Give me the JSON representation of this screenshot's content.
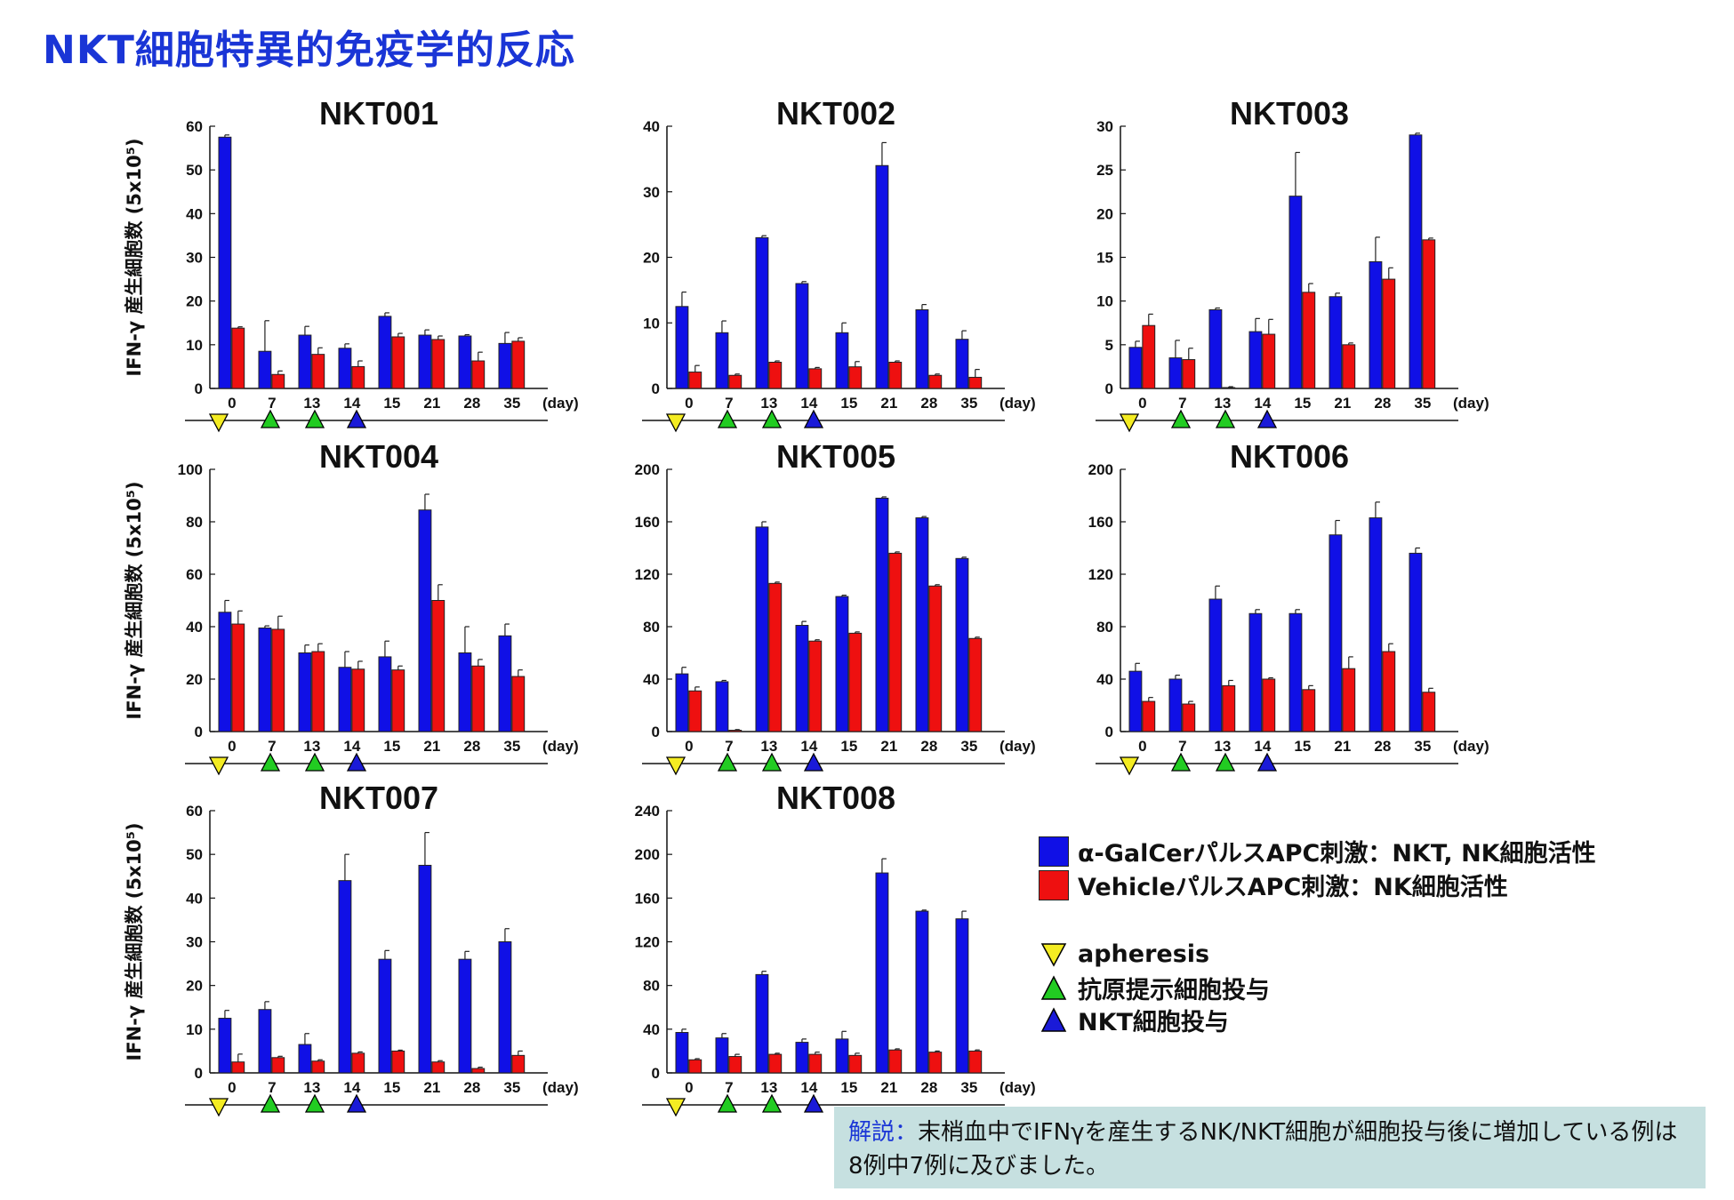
{
  "title": "NKT細胞特異的免疫学的反応",
  "ylabel": "IFN-γ 産生細胞数 (5x10⁵)",
  "colors": {
    "galcer": "#1010e6",
    "vehicle": "#ee1010",
    "apheresis": "#f4ec22",
    "apc": "#22cc22",
    "nkt": "#1a1ad8",
    "title": "#1a35d6"
  },
  "legend": {
    "galcer": "α-GalCerパルスAPC刺激：NKT, NK細胞活性",
    "vehicle": "VehicleパルスAPC刺激：NK細胞活性",
    "apheresis": "apheresis",
    "apc": "抗原提示細胞投与",
    "nkt": "NKT細胞投与"
  },
  "note": {
    "label": "解説：",
    "text": "末梢血中でIFNγを産生するNK/NKT細胞が細胞投与後に増加している例は8例中7例に及びました。"
  },
  "chart_data": [
    {
      "type": "bar",
      "title": "NKT001",
      "ylabel": "IFN-γ 産生細胞数 (5x10⁵)",
      "xunit": "(day)",
      "categories": [
        "0",
        "7",
        "13",
        "14",
        "15",
        "21",
        "28",
        "35"
      ],
      "ylim": [
        0,
        60
      ],
      "yticks": [
        0,
        10,
        20,
        30,
        40,
        50,
        60
      ],
      "series": [
        {
          "values": [
            57.5,
            8.5,
            12.2,
            9.2,
            16.5,
            12.2,
            12.0,
            10.3
          ],
          "errors": [
            0.5,
            7.0,
            2.0,
            1.0,
            0.8,
            1.2,
            0.3,
            2.5
          ]
        },
        {
          "values": [
            13.8,
            3.2,
            7.8,
            5.0,
            11.8,
            11.2,
            6.3,
            10.8
          ],
          "errors": [
            0.3,
            0.8,
            1.5,
            1.3,
            0.8,
            0.8,
            2.0,
            0.8
          ]
        }
      ],
      "events": [
        {
          "day": "0",
          "kind": "apheresis"
        },
        {
          "day": "7",
          "kind": "apc"
        },
        {
          "day": "13",
          "kind": "apc"
        },
        {
          "day": "14",
          "kind": "nkt"
        }
      ]
    },
    {
      "type": "bar",
      "title": "NKT002",
      "xunit": "(day)",
      "categories": [
        "0",
        "7",
        "13",
        "14",
        "15",
        "21",
        "28",
        "35"
      ],
      "ylim": [
        0,
        40
      ],
      "yticks": [
        0,
        10,
        20,
        30,
        40
      ],
      "series": [
        {
          "values": [
            12.5,
            8.5,
            23.0,
            16.0,
            8.5,
            34.0,
            12.0,
            7.5
          ],
          "errors": [
            2.2,
            1.8,
            0.3,
            0.3,
            1.5,
            3.5,
            0.8,
            1.3
          ]
        },
        {
          "values": [
            2.5,
            2.0,
            4.0,
            3.0,
            3.3,
            4.0,
            2.0,
            1.7
          ],
          "errors": [
            1.0,
            0.2,
            0.2,
            0.2,
            0.8,
            0.2,
            0.2,
            1.2
          ]
        }
      ],
      "events": [
        {
          "day": "0",
          "kind": "apheresis"
        },
        {
          "day": "7",
          "kind": "apc"
        },
        {
          "day": "13",
          "kind": "apc"
        },
        {
          "day": "14",
          "kind": "nkt"
        }
      ]
    },
    {
      "type": "bar",
      "title": "NKT003",
      "xunit": "(day)",
      "categories": [
        "0",
        "7",
        "13",
        "14",
        "15",
        "21",
        "28",
        "35"
      ],
      "ylim": [
        0,
        30
      ],
      "yticks": [
        0,
        5,
        10,
        15,
        20,
        25,
        30
      ],
      "series": [
        {
          "values": [
            4.7,
            3.5,
            9.0,
            6.5,
            22.0,
            10.5,
            14.5,
            29.0
          ],
          "errors": [
            0.7,
            2.0,
            0.2,
            1.5,
            5.0,
            0.4,
            2.8,
            0.2
          ]
        },
        {
          "values": [
            7.2,
            3.3,
            0.1,
            6.2,
            11.0,
            5.0,
            12.5,
            17.0
          ],
          "errors": [
            1.3,
            1.3,
            0.1,
            1.7,
            1.0,
            0.2,
            1.3,
            0.2
          ]
        }
      ],
      "events": [
        {
          "day": "0",
          "kind": "apheresis"
        },
        {
          "day": "7",
          "kind": "apc"
        },
        {
          "day": "13",
          "kind": "apc"
        },
        {
          "day": "14",
          "kind": "nkt"
        }
      ]
    },
    {
      "type": "bar",
      "title": "NKT004",
      "ylabel": "IFN-γ 産生細胞数 (5x10⁵)",
      "xunit": "(day)",
      "categories": [
        "0",
        "7",
        "13",
        "14",
        "15",
        "21",
        "28",
        "35"
      ],
      "ylim": [
        0,
        100
      ],
      "yticks": [
        0,
        20,
        40,
        60,
        80,
        100
      ],
      "series": [
        {
          "values": [
            45.5,
            39.5,
            30.0,
            24.5,
            28.5,
            84.5,
            30.0,
            36.5
          ],
          "errors": [
            4.5,
            0.8,
            3.0,
            6.0,
            6.0,
            6.0,
            10.0,
            4.5
          ]
        },
        {
          "values": [
            41.0,
            39.0,
            30.5,
            23.8,
            23.5,
            50.0,
            25.0,
            21.0
          ],
          "errors": [
            5.0,
            5.0,
            3.0,
            3.0,
            1.5,
            6.0,
            2.5,
            2.5
          ]
        }
      ],
      "events": [
        {
          "day": "0",
          "kind": "apheresis"
        },
        {
          "day": "7",
          "kind": "apc"
        },
        {
          "day": "13",
          "kind": "apc"
        },
        {
          "day": "14",
          "kind": "nkt"
        }
      ]
    },
    {
      "type": "bar",
      "title": "NKT005",
      "xunit": "(day)",
      "categories": [
        "0",
        "7",
        "13",
        "14",
        "15",
        "21",
        "28",
        "35"
      ],
      "ylim": [
        0,
        200
      ],
      "yticks": [
        0,
        40,
        80,
        120,
        160,
        200
      ],
      "series": [
        {
          "values": [
            44,
            38,
            156,
            81,
            103,
            178,
            163,
            132
          ],
          "errors": [
            5,
            1,
            4,
            3,
            1,
            1,
            1,
            1
          ]
        },
        {
          "values": [
            31,
            1,
            113,
            69,
            75,
            136,
            111,
            71
          ],
          "errors": [
            3,
            0.5,
            1,
            1,
            1,
            1,
            1,
            1
          ]
        }
      ],
      "events": [
        {
          "day": "0",
          "kind": "apheresis"
        },
        {
          "day": "7",
          "kind": "apc"
        },
        {
          "day": "13",
          "kind": "apc"
        },
        {
          "day": "14",
          "kind": "nkt"
        }
      ]
    },
    {
      "type": "bar",
      "title": "NKT006",
      "xunit": "(day)",
      "categories": [
        "0",
        "7",
        "13",
        "14",
        "15",
        "21",
        "28",
        "35"
      ],
      "ylim": [
        0,
        200
      ],
      "yticks": [
        0,
        40,
        80,
        120,
        160,
        200
      ],
      "series": [
        {
          "values": [
            46,
            40,
            101,
            90,
            90,
            150,
            163,
            136
          ],
          "errors": [
            6,
            3,
            10,
            3,
            3,
            11,
            12,
            4
          ]
        },
        {
          "values": [
            23,
            21,
            35,
            40,
            32,
            48,
            61,
            30
          ],
          "errors": [
            3,
            2,
            4,
            1,
            3,
            9,
            6,
            3
          ]
        }
      ],
      "events": [
        {
          "day": "0",
          "kind": "apheresis"
        },
        {
          "day": "7",
          "kind": "apc"
        },
        {
          "day": "13",
          "kind": "apc"
        },
        {
          "day": "14",
          "kind": "nkt"
        }
      ]
    },
    {
      "type": "bar",
      "title": "NKT007",
      "ylabel": "IFN-γ 産生細胞数 (5x10⁵)",
      "xunit": "(day)",
      "categories": [
        "0",
        "7",
        "13",
        "14",
        "15",
        "21",
        "28",
        "35"
      ],
      "ylim": [
        0,
        60
      ],
      "yticks": [
        0,
        10,
        20,
        30,
        40,
        50,
        60
      ],
      "series": [
        {
          "values": [
            12.5,
            14.5,
            6.5,
            44.0,
            26.0,
            47.5,
            26.0,
            30.0
          ],
          "errors": [
            1.8,
            1.8,
            2.5,
            6.0,
            2.0,
            7.5,
            1.8,
            3.0
          ]
        },
        {
          "values": [
            2.5,
            3.5,
            2.7,
            4.5,
            5.0,
            2.5,
            1.0,
            4.0
          ],
          "errors": [
            1.8,
            0.3,
            0.3,
            0.3,
            0.2,
            0.3,
            0.3,
            1.0
          ]
        }
      ],
      "events": [
        {
          "day": "0",
          "kind": "apheresis"
        },
        {
          "day": "7",
          "kind": "apc"
        },
        {
          "day": "13",
          "kind": "apc"
        },
        {
          "day": "14",
          "kind": "nkt"
        }
      ]
    },
    {
      "type": "bar",
      "title": "NKT008",
      "xunit": "(day)",
      "categories": [
        "0",
        "7",
        "13",
        "14",
        "15",
        "21",
        "28",
        "35"
      ],
      "ylim": [
        0,
        240
      ],
      "yticks": [
        0,
        40,
        80,
        120,
        160,
        200,
        240
      ],
      "series": [
        {
          "values": [
            37,
            32,
            90,
            28,
            31,
            183,
            148,
            141
          ],
          "errors": [
            3,
            4,
            3,
            3,
            7,
            13,
            1,
            7
          ]
        },
        {
          "values": [
            12,
            15,
            17,
            17,
            16,
            21,
            19,
            20
          ],
          "errors": [
            1,
            2,
            1,
            2,
            2,
            1,
            1,
            1
          ]
        }
      ],
      "events": [
        {
          "day": "0",
          "kind": "apheresis"
        },
        {
          "day": "7",
          "kind": "apc"
        },
        {
          "day": "13",
          "kind": "apc"
        },
        {
          "day": "14",
          "kind": "nkt"
        }
      ]
    }
  ]
}
